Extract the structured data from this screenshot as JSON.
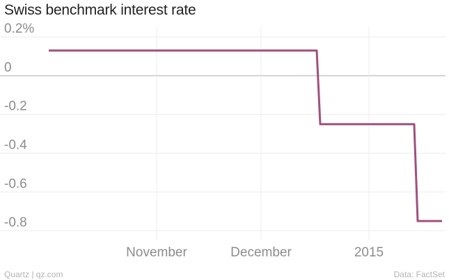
{
  "chart_data": {
    "type": "line",
    "title": "Swiss benchmark interest rate",
    "xlabel": "",
    "ylabel": "",
    "ylim": [
      -0.85,
      0.24
    ],
    "xlim": [
      "2014-09-28",
      "2015-01-23"
    ],
    "y_ticks": [
      {
        "value": 0.2,
        "label": "0.2%"
      },
      {
        "value": 0,
        "label": "0"
      },
      {
        "value": -0.2,
        "label": "-0.2"
      },
      {
        "value": -0.4,
        "label": "-0.4"
      },
      {
        "value": -0.6,
        "label": "-0.6"
      },
      {
        "value": -0.8,
        "label": "-0.8"
      }
    ],
    "x_ticks": [
      {
        "value": "2014-11-01",
        "label": "November"
      },
      {
        "value": "2014-12-01",
        "label": "December"
      },
      {
        "value": "2015-01-01",
        "label": "2015"
      }
    ],
    "grid": true,
    "line_color": "#a0507e",
    "series": [
      {
        "x": [
          "2014-10-01",
          "2014-12-17",
          "2014-12-18",
          "2015-01-14",
          "2015-01-15",
          "2015-01-22"
        ],
        "values": [
          0.13,
          0.13,
          -0.25,
          -0.25,
          -0.75,
          -0.75
        ]
      }
    ]
  },
  "footer": {
    "source_left": "Quartz | qz.com",
    "source_right": "Data: FactSet"
  }
}
